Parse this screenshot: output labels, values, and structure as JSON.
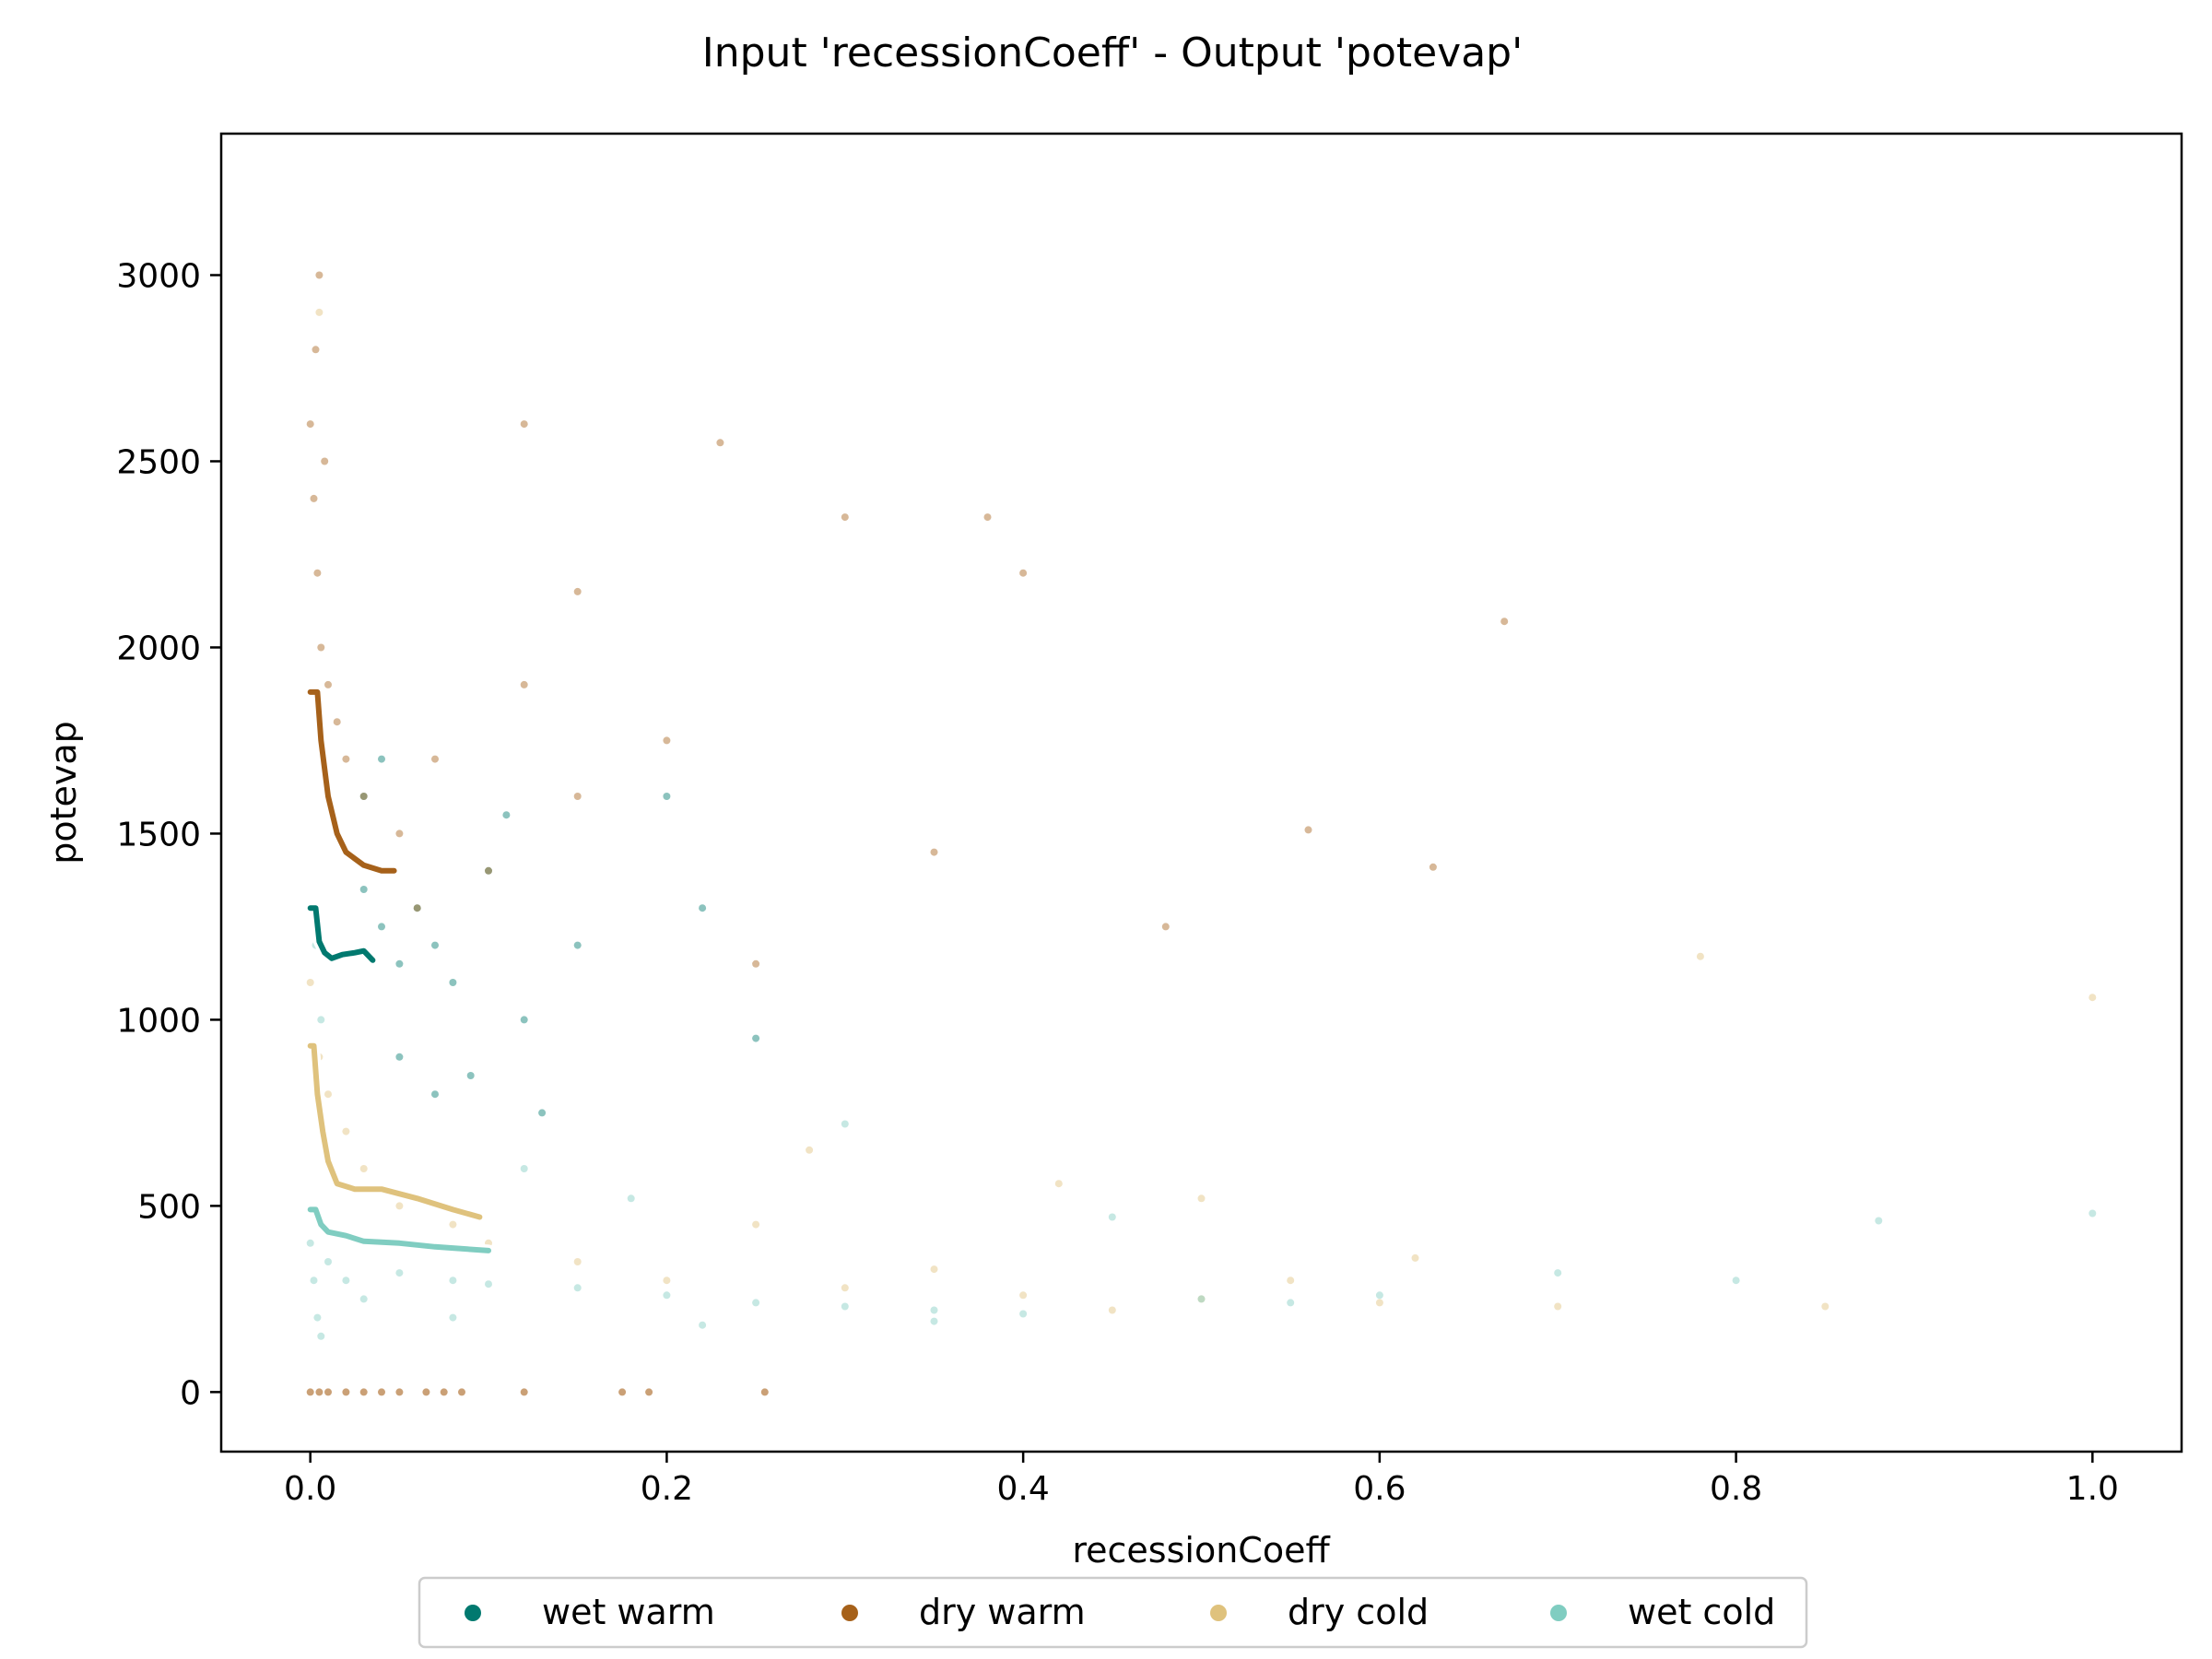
{
  "chart_data": {
    "type": "scatter",
    "title": "Input 'recessionCoeff' - Output 'potevap'",
    "xlabel": "recessionCoeff",
    "ylabel": "potevap",
    "xlim": [
      -0.05,
      1.05
    ],
    "ylim": [
      -160,
      3380
    ],
    "x_ticks": [
      {
        "value": 0.0,
        "label": "0.0"
      },
      {
        "value": 0.2,
        "label": "0.2"
      },
      {
        "value": 0.4,
        "label": "0.4"
      },
      {
        "value": 0.6,
        "label": "0.6"
      },
      {
        "value": 0.8,
        "label": "0.8"
      },
      {
        "value": 1.0,
        "label": "1.0"
      }
    ],
    "y_ticks": [
      {
        "value": 0,
        "label": "0"
      },
      {
        "value": 500,
        "label": "500"
      },
      {
        "value": 1000,
        "label": "1000"
      },
      {
        "value": 1500,
        "label": "1500"
      },
      {
        "value": 2000,
        "label": "2000"
      },
      {
        "value": 2500,
        "label": "2500"
      },
      {
        "value": 3000,
        "label": "3000"
      }
    ],
    "grid": false,
    "legend_position": "bottom-center, below axes",
    "series": [
      {
        "name": "wet warm",
        "color": "#01796f",
        "trend_line": [
          [
            0.0,
            1300
          ],
          [
            0.003,
            1300
          ],
          [
            0.005,
            1210
          ],
          [
            0.008,
            1180
          ],
          [
            0.012,
            1165
          ],
          [
            0.018,
            1175
          ],
          [
            0.025,
            1180
          ],
          [
            0.03,
            1185
          ],
          [
            0.035,
            1160
          ]
        ],
        "scatter_sample": [
          [
            0.02,
            1450
          ],
          [
            0.03,
            1350
          ],
          [
            0.04,
            1250
          ],
          [
            0.05,
            1150
          ],
          [
            0.06,
            1300
          ],
          [
            0.07,
            1200
          ],
          [
            0.08,
            1100
          ],
          [
            0.1,
            1400
          ],
          [
            0.12,
            1000
          ],
          [
            0.05,
            900
          ],
          [
            0.03,
            1600
          ],
          [
            0.15,
            1200
          ],
          [
            0.2,
            1600
          ],
          [
            0.22,
            1300
          ],
          [
            0.25,
            950
          ],
          [
            0.09,
            850
          ],
          [
            0.11,
            1550
          ],
          [
            0.13,
            750
          ],
          [
            0.04,
            1700
          ],
          [
            0.07,
            800
          ]
        ]
      },
      {
        "name": "dry warm",
        "color": "#a6611a",
        "trend_line": [
          [
            0.0,
            1880
          ],
          [
            0.004,
            1880
          ],
          [
            0.006,
            1750
          ],
          [
            0.01,
            1600
          ],
          [
            0.015,
            1500
          ],
          [
            0.02,
            1450
          ],
          [
            0.03,
            1415
          ],
          [
            0.04,
            1400
          ],
          [
            0.047,
            1400
          ]
        ],
        "scatter_sample": [
          [
            0.0,
            2600
          ],
          [
            0.002,
            2400
          ],
          [
            0.004,
            2200
          ],
          [
            0.006,
            2000
          ],
          [
            0.003,
            2800
          ],
          [
            0.01,
            1900
          ],
          [
            0.015,
            1800
          ],
          [
            0.02,
            1700
          ],
          [
            0.03,
            1600
          ],
          [
            0.05,
            1500
          ],
          [
            0.07,
            1700
          ],
          [
            0.1,
            1400
          ],
          [
            0.12,
            1900
          ],
          [
            0.15,
            1600
          ],
          [
            0.2,
            1750
          ],
          [
            0.12,
            2600
          ],
          [
            0.15,
            2150
          ],
          [
            0.23,
            2550
          ],
          [
            0.3,
            2350
          ],
          [
            0.4,
            2200
          ],
          [
            0.38,
            2350
          ],
          [
            0.67,
            2070
          ],
          [
            0.56,
            1510
          ],
          [
            0.48,
            1250
          ],
          [
            0.63,
            1410
          ],
          [
            0.25,
            1150
          ],
          [
            0.35,
            1450
          ],
          [
            0.005,
            3000
          ],
          [
            0.008,
            2500
          ],
          [
            0.06,
            1300
          ]
        ]
      },
      {
        "name": "dry cold",
        "color": "#dfc27d",
        "trend_line": [
          [
            0.0,
            930
          ],
          [
            0.002,
            930
          ],
          [
            0.004,
            800
          ],
          [
            0.007,
            700
          ],
          [
            0.01,
            620
          ],
          [
            0.015,
            560
          ],
          [
            0.025,
            545
          ],
          [
            0.04,
            545
          ],
          [
            0.06,
            520
          ],
          [
            0.08,
            490
          ],
          [
            0.095,
            470
          ]
        ],
        "scatter_sample": [
          [
            0.0,
            1100
          ],
          [
            0.005,
            900
          ],
          [
            0.01,
            800
          ],
          [
            0.02,
            700
          ],
          [
            0.03,
            600
          ],
          [
            0.05,
            500
          ],
          [
            0.08,
            450
          ],
          [
            0.1,
            400
          ],
          [
            0.15,
            350
          ],
          [
            0.2,
            300
          ],
          [
            0.3,
            280
          ],
          [
            0.4,
            260
          ],
          [
            0.5,
            250
          ],
          [
            0.6,
            240
          ],
          [
            0.7,
            230
          ],
          [
            0.55,
            300
          ],
          [
            0.45,
            220
          ],
          [
            0.35,
            330
          ],
          [
            0.25,
            450
          ],
          [
            0.78,
            1170
          ],
          [
            0.62,
            360
          ],
          [
            1.0,
            1060
          ],
          [
            0.85,
            230
          ],
          [
            0.42,
            560
          ],
          [
            0.5,
            520
          ],
          [
            0.28,
            650
          ],
          [
            0.005,
            2900
          ]
        ]
      },
      {
        "name": "wet cold",
        "color": "#80cdc1",
        "trend_line": [
          [
            0.0,
            490
          ],
          [
            0.003,
            490
          ],
          [
            0.006,
            450
          ],
          [
            0.01,
            430
          ],
          [
            0.02,
            420
          ],
          [
            0.03,
            405
          ],
          [
            0.05,
            400
          ],
          [
            0.07,
            390
          ],
          [
            0.1,
            380
          ]
        ],
        "scatter_sample": [
          [
            0.0,
            400
          ],
          [
            0.002,
            300
          ],
          [
            0.004,
            200
          ],
          [
            0.006,
            150
          ],
          [
            0.01,
            350
          ],
          [
            0.02,
            300
          ],
          [
            0.03,
            250
          ],
          [
            0.05,
            320
          ],
          [
            0.08,
            300
          ],
          [
            0.1,
            290
          ],
          [
            0.15,
            280
          ],
          [
            0.2,
            260
          ],
          [
            0.25,
            240
          ],
          [
            0.3,
            230
          ],
          [
            0.35,
            220
          ],
          [
            0.4,
            210
          ],
          [
            0.5,
            250
          ],
          [
            0.55,
            240
          ],
          [
            0.6,
            260
          ],
          [
            0.7,
            320
          ],
          [
            0.8,
            300
          ],
          [
            0.88,
            460
          ],
          [
            1.0,
            480
          ],
          [
            0.45,
            470
          ],
          [
            0.3,
            720
          ],
          [
            0.18,
            520
          ],
          [
            0.12,
            600
          ],
          [
            0.006,
            1000
          ],
          [
            0.003,
            1200
          ],
          [
            0.08,
            200
          ],
          [
            0.22,
            180
          ],
          [
            0.35,
            190
          ]
        ]
      }
    ],
    "zero_value_points": [
      [
        0.0,
        0
      ],
      [
        0.005,
        0
      ],
      [
        0.01,
        0
      ],
      [
        0.02,
        0
      ],
      [
        0.03,
        0
      ],
      [
        0.04,
        0
      ],
      [
        0.05,
        0
      ],
      [
        0.065,
        0
      ],
      [
        0.075,
        0
      ],
      [
        0.085,
        0
      ],
      [
        0.12,
        0
      ],
      [
        0.175,
        0
      ],
      [
        0.19,
        0
      ],
      [
        0.255,
        0
      ]
    ]
  }
}
